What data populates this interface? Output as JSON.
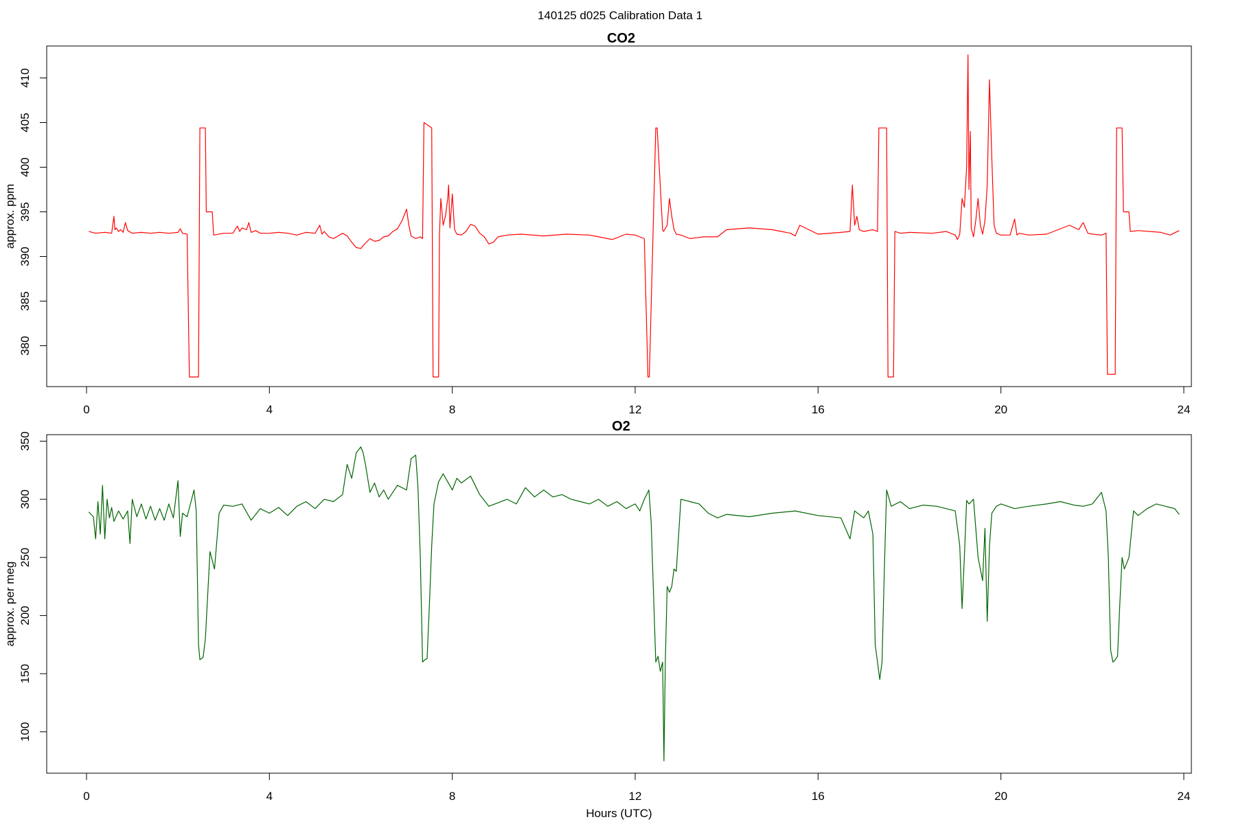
{
  "supertitle": "140125   d025   Calibration Data 1",
  "chart_data": [
    {
      "type": "line",
      "title": "CO2",
      "xlabel": "",
      "ylabel": "approx. ppm",
      "xlim": [
        0,
        24
      ],
      "ylim": [
        375.5,
        413.5
      ],
      "xticks": [
        0,
        4,
        8,
        12,
        16,
        20,
        24
      ],
      "yticks": [
        380,
        385,
        390,
        395,
        400,
        405,
        410
      ],
      "grid": false,
      "color": "#ff0000",
      "series": [
        {
          "x": [
            0.05,
            0.2,
            0.4,
            0.55,
            0.6,
            0.62,
            0.65,
            0.7,
            0.75,
            0.8,
            0.85,
            0.9,
            1.0,
            1.2,
            1.4,
            1.6,
            1.8,
            2.0,
            2.05,
            2.1,
            2.2,
            2.25,
            2.28,
            2.45,
            2.48,
            2.6,
            2.62,
            2.75,
            2.78,
            3.0,
            3.2,
            3.3,
            3.35,
            3.4,
            3.5,
            3.55,
            3.6,
            3.7,
            3.8,
            4.0,
            4.2,
            4.4,
            4.6,
            4.8,
            5.0,
            5.1,
            5.15,
            5.2,
            5.3,
            5.4,
            5.5,
            5.6,
            5.7,
            5.8,
            5.9,
            6.0,
            6.1,
            6.2,
            6.3,
            6.4,
            6.5,
            6.6,
            6.7,
            6.8,
            6.9,
            7.0,
            7.05,
            7.1,
            7.2,
            7.3,
            7.35,
            7.38,
            7.55,
            7.58,
            7.7,
            7.72,
            7.75,
            7.8,
            7.85,
            7.9,
            7.92,
            7.95,
            8.0,
            8.05,
            8.1,
            8.2,
            8.3,
            8.4,
            8.5,
            8.6,
            8.7,
            8.8,
            8.9,
            9.0,
            9.2,
            9.5,
            10.0,
            10.5,
            11.0,
            11.2,
            11.5,
            11.8,
            12.0,
            12.2,
            12.28,
            12.31,
            12.45,
            12.48,
            12.6,
            12.62,
            12.7,
            12.75,
            12.8,
            12.85,
            12.9,
            13.0,
            13.2,
            13.5,
            13.8,
            14.0,
            14.5,
            15.0,
            15.2,
            15.4,
            15.5,
            15.6,
            16.0,
            16.5,
            16.7,
            16.75,
            16.8,
            16.85,
            16.9,
            17.0,
            17.2,
            17.3,
            17.33,
            17.5,
            17.53,
            17.65,
            17.68,
            17.8,
            18.0,
            18.5,
            18.8,
            19.0,
            19.05,
            19.1,
            19.15,
            19.2,
            19.25,
            19.28,
            19.3,
            19.33,
            19.35,
            19.4,
            19.45,
            19.5,
            19.55,
            19.6,
            19.65,
            19.7,
            19.75,
            19.8,
            19.85,
            19.9,
            20.0,
            20.2,
            20.3,
            20.35,
            20.4,
            20.6,
            21.0,
            21.5,
            21.7,
            21.8,
            21.9,
            22.0,
            22.2,
            22.3,
            22.33,
            22.5,
            22.53,
            22.65,
            22.68,
            22.8,
            22.83,
            23.0,
            23.5,
            23.7,
            23.9
          ],
          "y": [
            392.8,
            392.6,
            392.7,
            392.6,
            394.5,
            393.0,
            393.2,
            392.8,
            393.0,
            392.7,
            393.8,
            392.9,
            392.6,
            392.7,
            392.6,
            392.7,
            392.6,
            392.7,
            393.1,
            392.6,
            392.5,
            376.5,
            376.5,
            376.5,
            404.4,
            404.4,
            395.0,
            395.0,
            392.4,
            392.6,
            392.6,
            393.4,
            392.8,
            393.2,
            393.0,
            393.8,
            392.7,
            392.9,
            392.6,
            392.6,
            392.7,
            392.6,
            392.4,
            392.7,
            392.6,
            393.5,
            392.5,
            392.8,
            392.2,
            392.0,
            392.3,
            392.6,
            392.3,
            391.6,
            391.0,
            390.9,
            391.5,
            392.0,
            391.7,
            391.8,
            392.2,
            392.3,
            392.8,
            393.1,
            394.0,
            395.3,
            393.5,
            392.3,
            392.0,
            392.2,
            392.0,
            405.0,
            404.4,
            376.5,
            376.5,
            392.5,
            396.5,
            393.5,
            394.5,
            396.5,
            398.0,
            393.2,
            397.0,
            393.0,
            392.5,
            392.4,
            392.8,
            393.6,
            393.4,
            392.6,
            392.2,
            391.4,
            391.6,
            392.2,
            392.4,
            392.5,
            392.3,
            392.5,
            392.4,
            392.2,
            391.9,
            392.5,
            392.4,
            392.0,
            376.5,
            376.5,
            404.4,
            404.4,
            393.0,
            392.8,
            393.5,
            396.5,
            394.5,
            393.0,
            392.5,
            392.4,
            392.0,
            392.2,
            392.2,
            393.0,
            393.2,
            393.0,
            392.8,
            392.6,
            392.3,
            393.5,
            392.5,
            392.7,
            392.8,
            398.0,
            393.5,
            394.5,
            393.0,
            392.8,
            393.0,
            392.8,
            404.4,
            404.4,
            376.5,
            376.5,
            392.8,
            392.6,
            392.7,
            392.6,
            392.8,
            392.4,
            391.9,
            392.5,
            396.5,
            395.5,
            400.0,
            412.6,
            397.5,
            404.0,
            393.2,
            392.2,
            394.0,
            396.5,
            393.5,
            392.5,
            394.0,
            398.0,
            409.8,
            401.0,
            393.5,
            392.6,
            392.4,
            392.4,
            394.2,
            392.4,
            392.6,
            392.4,
            392.5,
            393.5,
            393.0,
            393.8,
            392.6,
            392.5,
            392.4,
            392.6,
            376.8,
            376.8,
            404.4,
            404.4,
            395.0,
            395.0,
            392.8,
            392.9,
            392.7,
            392.4,
            392.9
          ]
        }
      ]
    },
    {
      "type": "line",
      "title": "O2",
      "xlabel": "Hours (UTC)",
      "ylabel": "approx. per meg",
      "xlim": [
        0,
        24
      ],
      "ylim": [
        65,
        355
      ],
      "xticks": [
        0,
        4,
        8,
        12,
        16,
        20,
        24
      ],
      "yticks": [
        100,
        150,
        200,
        250,
        300,
        350
      ],
      "grid": false,
      "color": "#006400",
      "series": [
        {
          "x": [
            0.05,
            0.15,
            0.2,
            0.25,
            0.3,
            0.35,
            0.4,
            0.45,
            0.5,
            0.55,
            0.6,
            0.7,
            0.8,
            0.9,
            0.95,
            1.0,
            1.1,
            1.2,
            1.3,
            1.4,
            1.5,
            1.6,
            1.7,
            1.8,
            1.9,
            2.0,
            2.05,
            2.1,
            2.2,
            2.3,
            2.35,
            2.4,
            2.45,
            2.48,
            2.55,
            2.6,
            2.7,
            2.8,
            2.9,
            3.0,
            3.2,
            3.4,
            3.6,
            3.8,
            4.0,
            4.2,
            4.4,
            4.6,
            4.8,
            5.0,
            5.2,
            5.4,
            5.6,
            5.7,
            5.8,
            5.9,
            6.0,
            6.05,
            6.1,
            6.2,
            6.3,
            6.4,
            6.5,
            6.6,
            6.8,
            7.0,
            7.1,
            7.2,
            7.25,
            7.3,
            7.35,
            7.4,
            7.45,
            7.5,
            7.55,
            7.6,
            7.7,
            7.8,
            8.0,
            8.1,
            8.2,
            8.4,
            8.6,
            8.8,
            9.0,
            9.2,
            9.4,
            9.6,
            9.8,
            10.0,
            10.2,
            10.4,
            10.6,
            10.8,
            11.0,
            11.2,
            11.4,
            11.6,
            11.8,
            12.0,
            12.1,
            12.2,
            12.3,
            12.35,
            12.45,
            12.5,
            12.55,
            12.6,
            12.63,
            12.66,
            12.7,
            12.75,
            12.8,
            12.85,
            12.9,
            13.0,
            13.2,
            13.4,
            13.6,
            13.8,
            14.0,
            14.5,
            15.0,
            15.5,
            16.0,
            16.5,
            16.7,
            16.8,
            17.0,
            17.1,
            17.2,
            17.25,
            17.3,
            17.35,
            17.4,
            17.45,
            17.5,
            17.6,
            17.8,
            18.0,
            18.3,
            18.6,
            19.0,
            19.1,
            19.15,
            19.2,
            19.25,
            19.3,
            19.4,
            19.5,
            19.6,
            19.65,
            19.7,
            19.75,
            19.8,
            19.9,
            20.0,
            20.3,
            20.6,
            21.0,
            21.3,
            21.6,
            21.8,
            22.0,
            22.2,
            22.3,
            22.35,
            22.4,
            22.45,
            22.5,
            22.55,
            22.6,
            22.65,
            22.7,
            22.75,
            22.8,
            22.9,
            23.0,
            23.2,
            23.4,
            23.6,
            23.7,
            23.8,
            23.9
          ],
          "y": [
            289,
            285,
            266,
            298,
            270,
            312,
            266,
            300,
            284,
            293,
            281,
            290,
            283,
            290,
            262,
            300,
            285,
            296,
            283,
            294,
            282,
            292,
            282,
            296,
            284,
            316,
            268,
            288,
            285,
            300,
            308,
            290,
            175,
            162,
            164,
            180,
            255,
            240,
            288,
            295,
            294,
            296,
            282,
            292,
            288,
            293,
            286,
            294,
            298,
            292,
            300,
            298,
            304,
            330,
            318,
            340,
            345,
            340,
            330,
            306,
            314,
            302,
            308,
            300,
            312,
            308,
            335,
            338,
            310,
            250,
            160,
            162,
            163,
            210,
            260,
            296,
            315,
            322,
            308,
            318,
            314,
            320,
            304,
            294,
            297,
            300,
            296,
            310,
            302,
            308,
            302,
            304,
            300,
            298,
            296,
            300,
            294,
            298,
            292,
            296,
            290,
            300,
            308,
            280,
            160,
            165,
            152,
            160,
            75,
            160,
            225,
            220,
            225,
            240,
            238,
            300,
            298,
            296,
            288,
            284,
            287,
            285,
            288,
            290,
            286,
            284,
            266,
            290,
            284,
            290,
            270,
            175,
            160,
            145,
            160,
            240,
            308,
            294,
            298,
            292,
            295,
            294,
            290,
            260,
            206,
            250,
            299,
            296,
            300,
            250,
            230,
            275,
            195,
            260,
            288,
            294,
            296,
            292,
            294,
            296,
            298,
            295,
            294,
            296,
            306,
            290,
            250,
            170,
            160,
            162,
            165,
            210,
            250,
            240,
            245,
            250,
            290,
            286,
            292,
            296,
            294,
            293,
            292,
            287
          ]
        }
      ]
    }
  ]
}
